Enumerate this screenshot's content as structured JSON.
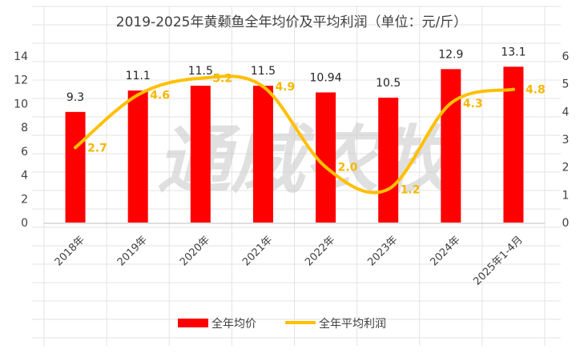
{
  "chart_data": {
    "type": "bar",
    "title": "2019-2025年黄颡鱼全年均价及平均利润（单位：元/斤）",
    "categories": [
      "2018年",
      "2019年",
      "2020年",
      "2021年",
      "2022年",
      "2023年",
      "2024年",
      "2025年1-4月"
    ],
    "series": [
      {
        "name": "全年均价",
        "type": "bar",
        "axis": "left",
        "color": "#ff0000",
        "values": [
          9.3,
          11.1,
          11.5,
          11.5,
          10.94,
          10.5,
          12.9,
          13.1
        ],
        "labels": [
          "9.3",
          "11.1",
          "11.5",
          "11.5",
          "10.94",
          "10.5",
          "12.9",
          "13.1"
        ]
      },
      {
        "name": "全年平均利润",
        "type": "line",
        "axis": "right",
        "color": "#ffc000",
        "values": [
          2.7,
          4.6,
          5.2,
          4.9,
          2.0,
          1.2,
          4.3,
          4.8
        ],
        "labels": [
          "2.7",
          "4.6",
          "5.2",
          "4.9",
          "2.0",
          "1.2",
          "4.3",
          "4.8"
        ]
      }
    ],
    "y_left": {
      "ylim": [
        0,
        14
      ],
      "ticks": [
        "0",
        "2",
        "4",
        "6",
        "8",
        "10",
        "12",
        "14"
      ]
    },
    "y_right": {
      "ylim": [
        0,
        6
      ],
      "ticks": [
        "0",
        "1",
        "2",
        "3",
        "4",
        "5",
        "6"
      ]
    },
    "grid": true,
    "legend": "bottom",
    "watermark": "通威农牧"
  }
}
